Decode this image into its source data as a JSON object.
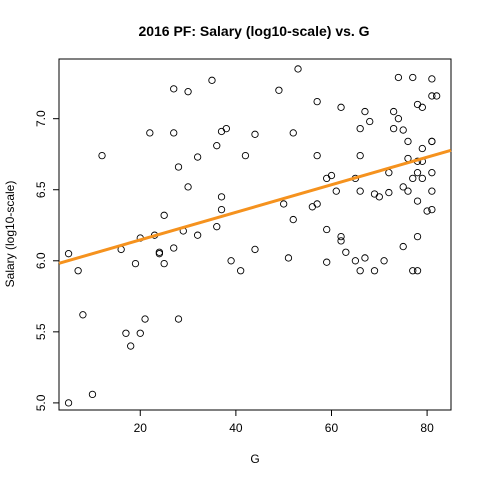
{
  "chart_data": {
    "type": "scatter",
    "title": "2016 PF: Salary (log10-scale) vs. G",
    "xlabel": "G",
    "ylabel": "Salary (log10-scale)",
    "xlim": [
      3,
      85
    ],
    "ylim": [
      4.95,
      7.42
    ],
    "xticks": [
      20,
      40,
      60,
      80
    ],
    "yticks": [
      5.0,
      5.5,
      6.0,
      6.5,
      7.0
    ],
    "grid": false,
    "point_color": "#000000",
    "fit_line": {
      "intercept": 5.953,
      "slope": 0.0097,
      "color": "#f5921e"
    },
    "points": [
      {
        "x": 5,
        "y": 6.05
      },
      {
        "x": 5,
        "y": 5.0
      },
      {
        "x": 7,
        "y": 5.93
      },
      {
        "x": 8,
        "y": 5.62
      },
      {
        "x": 10,
        "y": 5.06
      },
      {
        "x": 12,
        "y": 6.74
      },
      {
        "x": 16,
        "y": 6.08
      },
      {
        "x": 17,
        "y": 5.49
      },
      {
        "x": 18,
        "y": 5.4
      },
      {
        "x": 19,
        "y": 5.98
      },
      {
        "x": 20,
        "y": 6.16
      },
      {
        "x": 20,
        "y": 5.49
      },
      {
        "x": 21,
        "y": 5.59
      },
      {
        "x": 22,
        "y": 6.9
      },
      {
        "x": 23,
        "y": 6.18
      },
      {
        "x": 24,
        "y": 6.05
      },
      {
        "x": 24,
        "y": 6.06
      },
      {
        "x": 25,
        "y": 6.32
      },
      {
        "x": 25,
        "y": 5.98
      },
      {
        "x": 27,
        "y": 7.21
      },
      {
        "x": 27,
        "y": 6.9
      },
      {
        "x": 27,
        "y": 6.09
      },
      {
        "x": 28,
        "y": 6.66
      },
      {
        "x": 28,
        "y": 5.59
      },
      {
        "x": 29,
        "y": 6.21
      },
      {
        "x": 30,
        "y": 7.19
      },
      {
        "x": 30,
        "y": 6.52
      },
      {
        "x": 32,
        "y": 6.73
      },
      {
        "x": 32,
        "y": 6.18
      },
      {
        "x": 35,
        "y": 7.27
      },
      {
        "x": 36,
        "y": 6.81
      },
      {
        "x": 36,
        "y": 6.24
      },
      {
        "x": 37,
        "y": 6.91
      },
      {
        "x": 37,
        "y": 6.45
      },
      {
        "x": 37,
        "y": 6.36
      },
      {
        "x": 38,
        "y": 6.93
      },
      {
        "x": 39,
        "y": 6.0
      },
      {
        "x": 41,
        "y": 5.93
      },
      {
        "x": 42,
        "y": 6.74
      },
      {
        "x": 44,
        "y": 6.89
      },
      {
        "x": 44,
        "y": 6.08
      },
      {
        "x": 49,
        "y": 7.2
      },
      {
        "x": 50,
        "y": 6.4
      },
      {
        "x": 51,
        "y": 6.02
      },
      {
        "x": 52,
        "y": 6.9
      },
      {
        "x": 52,
        "y": 6.29
      },
      {
        "x": 53,
        "y": 7.35
      },
      {
        "x": 56,
        "y": 6.38
      },
      {
        "x": 57,
        "y": 7.12
      },
      {
        "x": 57,
        "y": 6.74
      },
      {
        "x": 57,
        "y": 6.4
      },
      {
        "x": 59,
        "y": 6.58
      },
      {
        "x": 59,
        "y": 6.22
      },
      {
        "x": 59,
        "y": 5.99
      },
      {
        "x": 60,
        "y": 6.6
      },
      {
        "x": 61,
        "y": 6.49
      },
      {
        "x": 62,
        "y": 7.08
      },
      {
        "x": 62,
        "y": 6.17
      },
      {
        "x": 62,
        "y": 6.14
      },
      {
        "x": 63,
        "y": 6.06
      },
      {
        "x": 65,
        "y": 6.58
      },
      {
        "x": 65,
        "y": 6.0
      },
      {
        "x": 66,
        "y": 6.93
      },
      {
        "x": 66,
        "y": 6.74
      },
      {
        "x": 66,
        "y": 6.49
      },
      {
        "x": 66,
        "y": 5.93
      },
      {
        "x": 67,
        "y": 7.05
      },
      {
        "x": 67,
        "y": 6.02
      },
      {
        "x": 68,
        "y": 6.98
      },
      {
        "x": 69,
        "y": 6.47
      },
      {
        "x": 69,
        "y": 5.93
      },
      {
        "x": 70,
        "y": 6.45
      },
      {
        "x": 71,
        "y": 6.0
      },
      {
        "x": 72,
        "y": 6.62
      },
      {
        "x": 72,
        "y": 6.48
      },
      {
        "x": 73,
        "y": 7.05
      },
      {
        "x": 73,
        "y": 6.93
      },
      {
        "x": 74,
        "y": 7.29
      },
      {
        "x": 74,
        "y": 7.0
      },
      {
        "x": 75,
        "y": 6.92
      },
      {
        "x": 75,
        "y": 6.52
      },
      {
        "x": 75,
        "y": 6.1
      },
      {
        "x": 76,
        "y": 6.84
      },
      {
        "x": 76,
        "y": 6.72
      },
      {
        "x": 76,
        "y": 6.49
      },
      {
        "x": 77,
        "y": 7.29
      },
      {
        "x": 77,
        "y": 6.58
      },
      {
        "x": 77,
        "y": 5.93
      },
      {
        "x": 78,
        "y": 7.1
      },
      {
        "x": 78,
        "y": 6.7
      },
      {
        "x": 78,
        "y": 6.62
      },
      {
        "x": 78,
        "y": 6.42
      },
      {
        "x": 78,
        "y": 6.17
      },
      {
        "x": 78,
        "y": 5.93
      },
      {
        "x": 79,
        "y": 7.08
      },
      {
        "x": 79,
        "y": 6.79
      },
      {
        "x": 79,
        "y": 6.7
      },
      {
        "x": 79,
        "y": 6.58
      },
      {
        "x": 80,
        "y": 6.35
      },
      {
        "x": 81,
        "y": 7.28
      },
      {
        "x": 81,
        "y": 7.16
      },
      {
        "x": 81,
        "y": 6.84
      },
      {
        "x": 81,
        "y": 6.84
      },
      {
        "x": 81,
        "y": 6.62
      },
      {
        "x": 81,
        "y": 6.49
      },
      {
        "x": 81,
        "y": 6.36
      },
      {
        "x": 82,
        "y": 7.16
      }
    ]
  }
}
